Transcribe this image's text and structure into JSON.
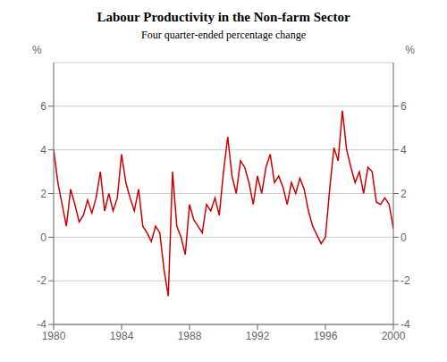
{
  "chart_data": {
    "type": "line",
    "title": "Labour Productivity in the Non-farm Sector",
    "subtitle": "Four quarter-ended percentage change",
    "annotations": [
      "%",
      "%"
    ],
    "x": [
      1980.0,
      1980.25,
      1980.5,
      1980.75,
      1981.0,
      1981.25,
      1981.5,
      1981.75,
      1982.0,
      1982.25,
      1982.5,
      1982.75,
      1983.0,
      1983.25,
      1983.5,
      1983.75,
      1984.0,
      1984.25,
      1984.5,
      1984.75,
      1985.0,
      1985.25,
      1985.5,
      1985.75,
      1986.0,
      1986.25,
      1986.5,
      1986.75,
      1987.0,
      1987.25,
      1987.5,
      1987.75,
      1988.0,
      1988.25,
      1988.5,
      1988.75,
      1989.0,
      1989.25,
      1989.5,
      1989.75,
      1990.0,
      1990.25,
      1990.5,
      1990.75,
      1991.0,
      1991.25,
      1991.5,
      1991.75,
      1992.0,
      1992.25,
      1992.5,
      1992.75,
      1993.0,
      1993.25,
      1993.5,
      1993.75,
      1994.0,
      1994.25,
      1994.5,
      1994.75,
      1995.0,
      1995.25,
      1995.5,
      1995.75,
      1996.0,
      1996.25,
      1996.5,
      1996.75,
      1997.0,
      1997.25,
      1997.5,
      1997.75,
      1998.0,
      1998.25,
      1998.5,
      1998.75,
      1999.0,
      1999.25,
      1999.5,
      1999.75,
      2000.0
    ],
    "values": [
      4.0,
      2.5,
      1.5,
      0.5,
      2.2,
      1.5,
      0.7,
      1.0,
      1.7,
      1.1,
      1.8,
      3.0,
      1.2,
      2.0,
      1.2,
      1.8,
      3.8,
      2.5,
      1.8,
      1.2,
      2.2,
      0.5,
      0.2,
      -0.2,
      0.5,
      0.2,
      -1.5,
      -2.7,
      3.0,
      0.5,
      0.0,
      -0.8,
      1.5,
      0.8,
      0.5,
      0.2,
      1.5,
      1.2,
      1.8,
      1.0,
      3.0,
      4.6,
      2.8,
      2.0,
      3.5,
      3.2,
      2.5,
      1.5,
      2.8,
      2.0,
      3.2,
      3.8,
      2.5,
      2.8,
      2.3,
      1.5,
      2.5,
      2.0,
      2.7,
      2.2,
      1.2,
      0.5,
      0.1,
      -0.3,
      0.0,
      2.2,
      4.1,
      3.5,
      5.8,
      4.0,
      3.2,
      2.5,
      3.0,
      2.0,
      3.2,
      3.0,
      1.6,
      1.5,
      1.8,
      1.5,
      0.4
    ],
    "color": "#cc0000",
    "xlim": [
      1980,
      2000
    ],
    "xticks": [
      1980,
      1984,
      1988,
      1992,
      1996,
      2000
    ],
    "ylim": [
      -4,
      8
    ],
    "yticks": [
      -4,
      -2,
      0,
      2,
      4,
      6
    ],
    "y2lim": [
      -4,
      8
    ],
    "y2ticks": [
      -4,
      -2,
      0,
      2,
      4,
      6
    ],
    "grid": true
  }
}
